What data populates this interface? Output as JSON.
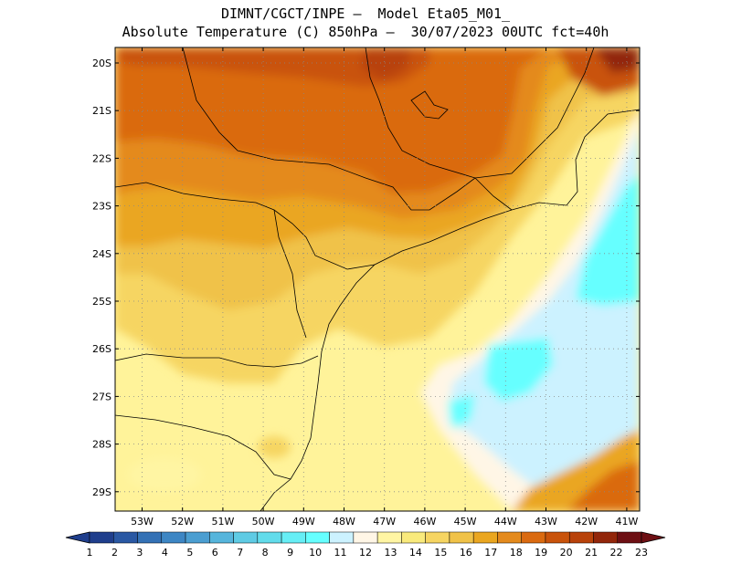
{
  "header": {
    "line1": "DIMNT/CGCT/INPE –  Model Eta05_M01_",
    "line2": "Absolute Temperature (C) 850hPa –  30/07/2023 00UTC fct=40h"
  },
  "axes": {
    "lat_labels": [
      "20S",
      "21S",
      "22S",
      "23S",
      "24S",
      "25S",
      "26S",
      "27S",
      "28S",
      "29S"
    ],
    "lon_labels": [
      "53W",
      "52W",
      "51W",
      "50W",
      "49W",
      "48W",
      "47W",
      "46W",
      "45W",
      "44W",
      "43W",
      "42W",
      "41W"
    ]
  },
  "colorbar": {
    "labels": [
      "1",
      "2",
      "3",
      "4",
      "5",
      "6",
      "7",
      "8",
      "9",
      "10",
      "11",
      "12",
      "13",
      "14",
      "15",
      "16",
      "17",
      "18",
      "19",
      "20",
      "21",
      "22",
      "23"
    ],
    "colors": [
      "#1f3e8c",
      "#2a58a3",
      "#3471b5",
      "#3d86c4",
      "#4b9ed1",
      "#56b5dc",
      "#5fcbe4",
      "#62dceb",
      "#66eef5",
      "#66ffff",
      "#ccf2ff",
      "#fff6e6",
      "#fff5a3",
      "#f9ea7c",
      "#f6d562",
      "#f0c248",
      "#eaa620",
      "#e48a1d",
      "#da6a10",
      "#c9530b",
      "#b8420a",
      "#92260a",
      "#6d0f13"
    ]
  }
}
